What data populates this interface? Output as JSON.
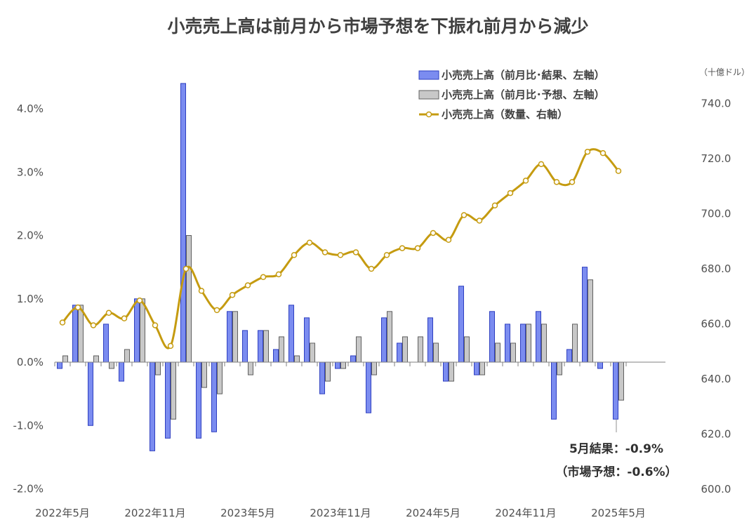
{
  "chart_data": {
    "type": "bar",
    "title": "小売売上高は前月から市場予想を下振れ前月から減少",
    "right_axis_unit": "（十億ドル）",
    "left_axis": {
      "ylim": [
        -2.0,
        4.5
      ],
      "ticks": [
        "4.0%",
        "3.0%",
        "2.0%",
        "1.0%",
        "0.0%",
        "-1.0%",
        "-2.0%"
      ]
    },
    "right_axis": {
      "ylim": [
        600,
        750
      ],
      "ticks": [
        "740.0",
        "720.0",
        "700.0",
        "680.0",
        "660.0",
        "640.0",
        "620.0",
        "600.0"
      ]
    },
    "x_tick_labels": [
      "2022年5月",
      "2022年11月",
      "2023年5月",
      "2023年11月",
      "2024年5月",
      "2024年11月",
      "2025年5月"
    ],
    "categories": [
      "2022-05",
      "2022-06",
      "2022-07",
      "2022-08",
      "2022-09",
      "2022-10",
      "2022-11",
      "2022-12",
      "2023-01",
      "2023-02",
      "2023-03",
      "2023-04",
      "2023-05",
      "2023-06",
      "2023-07",
      "2023-08",
      "2023-09",
      "2023-10",
      "2023-11",
      "2023-12",
      "2024-01",
      "2024-02",
      "2024-03",
      "2024-04",
      "2024-05",
      "2024-06",
      "2024-07",
      "2024-08",
      "2024-09",
      "2024-10",
      "2024-11",
      "2024-12",
      "2025-01",
      "2025-02",
      "2025-03",
      "2025-04",
      "2025-05"
    ],
    "series": [
      {
        "name": "小売売上高（前月比･結果、左軸）",
        "color": "#7B8CF0",
        "values": [
          -0.1,
          0.9,
          -1.0,
          0.6,
          -0.3,
          1.0,
          -1.4,
          -1.2,
          4.4,
          -1.2,
          -1.1,
          0.8,
          0.5,
          0.5,
          0.2,
          0.9,
          0.7,
          -0.5,
          -0.1,
          0.1,
          -0.8,
          0.7,
          0.3,
          0.0,
          0.7,
          -0.3,
          1.2,
          -0.2,
          0.8,
          0.6,
          0.6,
          0.8,
          -0.9,
          0.2,
          1.5,
          -0.1,
          -0.9
        ]
      },
      {
        "name": "小売売上高（前月比･予想、左軸）",
        "color": "#C8C8C8",
        "values": [
          0.1,
          0.9,
          0.1,
          -0.1,
          0.2,
          1.0,
          -0.2,
          -0.9,
          2.0,
          -0.4,
          -0.5,
          0.8,
          -0.2,
          0.5,
          0.4,
          0.1,
          0.3,
          -0.3,
          -0.1,
          0.4,
          -0.2,
          0.8,
          0.4,
          0.4,
          0.3,
          -0.3,
          0.4,
          -0.2,
          0.3,
          0.3,
          0.6,
          0.6,
          -0.2,
          0.6,
          1.3,
          0.0,
          -0.6
        ]
      },
      {
        "name": "小売売上高（数量、右軸）",
        "color": "#C59B10",
        "values": [
          660.5,
          666,
          659.5,
          664,
          662,
          668.5,
          659.5,
          652,
          680,
          672,
          665,
          670.5,
          674,
          677,
          678,
          685,
          689.5,
          686,
          685,
          686,
          680,
          685,
          687.5,
          687.5,
          693,
          690.5,
          699.5,
          697.5,
          703,
          707.5,
          712,
          718,
          711.5,
          711.5,
          722.5,
          722,
          715.5
        ]
      }
    ],
    "annotation": {
      "line1": "5月結果：-0.9%",
      "line2": "（市場予想：-0.6%）"
    },
    "legend_position": "top-right",
    "grid": false
  }
}
